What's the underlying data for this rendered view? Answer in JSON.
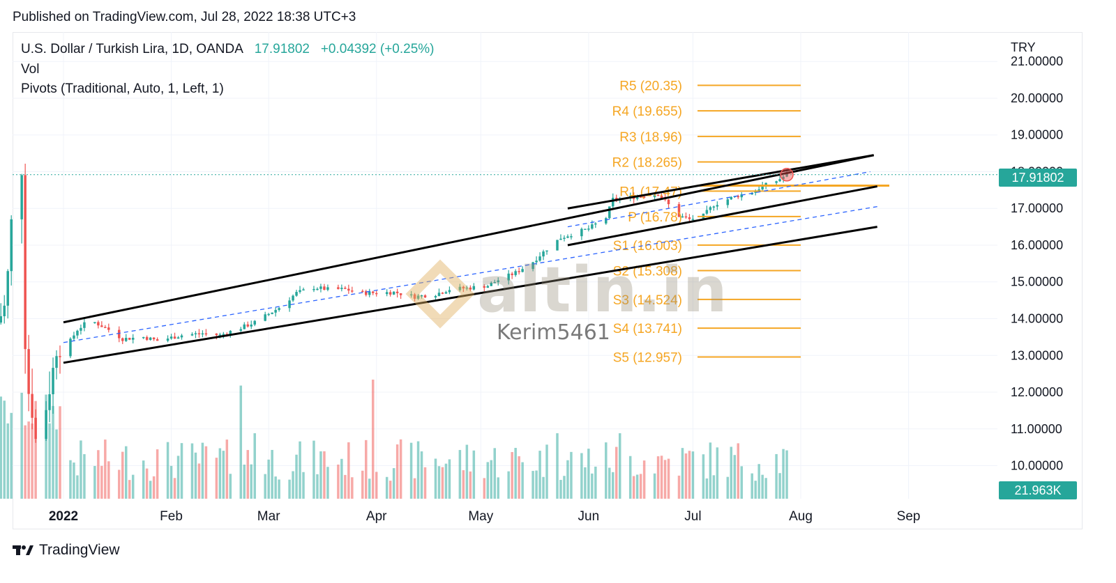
{
  "header": {
    "published": "Published on TradingView.com, Jul 28, 2022 18:38 UTC+3"
  },
  "legend": {
    "symbol": "U.S. Dollar / Turkish Lira, 1D, OANDA",
    "last": "17.91802",
    "change": "+0.04392 (+0.25%)",
    "vol_label": "Vol",
    "pivots_label": "Pivots (Traditional, Auto, 1, Left, 1)"
  },
  "axis": {
    "currency": "TRY",
    "current_price_tag": "17.91802",
    "volume_tag": "21.963K"
  },
  "watermark": {
    "brand": "altin.in",
    "author": "Kerim5461"
  },
  "footer": {
    "brand": "TradingView"
  },
  "colors": {
    "up": "#26a69a",
    "down": "#ef5350",
    "pivot": "#f5a623",
    "channel": "#000000",
    "midline": "#2962ff"
  },
  "chart_data": {
    "type": "candlestick",
    "y_ticks": [
      "21.00000",
      "20.00000",
      "19.00000",
      "18.00000",
      "17.00000",
      "16.00000",
      "15.00000",
      "14.00000",
      "13.00000",
      "12.00000",
      "11.00000",
      "10.00000"
    ],
    "x_ticks": [
      "2022",
      "Feb",
      "Mar",
      "Apr",
      "May",
      "Jun",
      "Jul",
      "Aug",
      "Sep"
    ],
    "ylim": [
      9.1,
      21.8
    ],
    "pivots": [
      {
        "label": "R5 (20.35)",
        "value": 20.35
      },
      {
        "label": "R4 (19.655)",
        "value": 19.655
      },
      {
        "label": "R3 (18.96)",
        "value": 18.96
      },
      {
        "label": "R2 (18.265)",
        "value": 18.265
      },
      {
        "label": "R1 (17.47)",
        "value": 17.47
      },
      {
        "label": "P (16.78)",
        "value": 16.78
      },
      {
        "label": "S1 (16.003)",
        "value": 16.003
      },
      {
        "label": "S2 (15.308)",
        "value": 15.308
      },
      {
        "label": "S3 (14.524)",
        "value": 14.524
      },
      {
        "label": "S4 (13.741)",
        "value": 13.741
      },
      {
        "label": "S5 (12.957)",
        "value": 12.957
      }
    ],
    "close_path": [
      [
        "2021-12-13",
        13.9
      ],
      [
        "2021-12-15",
        14.3
      ],
      [
        "2021-12-16",
        15.2
      ],
      [
        "2021-12-17",
        16.6
      ],
      [
        "2021-12-20",
        18.1
      ],
      [
        "2021-12-21",
        13.4
      ],
      [
        "2021-12-22",
        12.0
      ],
      [
        "2021-12-23",
        11.5
      ],
      [
        "2021-12-24",
        10.7
      ],
      [
        "2021-12-27",
        11.6
      ],
      [
        "2021-12-28",
        12.1
      ],
      [
        "2021-12-29",
        12.6
      ],
      [
        "2021-12-30",
        13.2
      ],
      [
        "2022-01-01",
        13.3
      ],
      [
        "2022-01-03",
        13.4
      ],
      [
        "2022-01-05",
        13.7
      ],
      [
        "2022-01-07",
        13.85
      ],
      [
        "2022-01-10",
        13.9
      ],
      [
        "2022-01-14",
        13.7
      ],
      [
        "2022-01-18",
        13.45
      ],
      [
        "2022-01-24",
        13.5
      ],
      [
        "2022-01-28",
        13.4
      ],
      [
        "2022-02-04",
        13.55
      ],
      [
        "2022-02-10",
        13.6
      ],
      [
        "2022-02-15",
        13.55
      ],
      [
        "2022-02-21",
        13.75
      ],
      [
        "2022-02-25",
        13.9
      ],
      [
        "2022-03-04",
        14.3
      ],
      [
        "2022-03-09",
        14.7
      ],
      [
        "2022-03-14",
        14.85
      ],
      [
        "2022-03-18",
        14.8
      ],
      [
        "2022-03-23",
        14.8
      ],
      [
        "2022-03-28",
        14.7
      ],
      [
        "2022-04-01",
        14.7
      ],
      [
        "2022-04-06",
        14.72
      ],
      [
        "2022-04-12",
        14.6
      ],
      [
        "2022-04-18",
        14.67
      ],
      [
        "2022-04-22",
        14.8
      ],
      [
        "2022-04-28",
        14.84
      ],
      [
        "2022-05-03",
        14.9
      ],
      [
        "2022-05-06",
        15.05
      ],
      [
        "2022-05-11",
        15.25
      ],
      [
        "2022-05-16",
        15.55
      ],
      [
        "2022-05-20",
        15.9
      ],
      [
        "2022-05-24",
        16.2
      ],
      [
        "2022-05-27",
        16.3
      ],
      [
        "2022-06-01",
        16.45
      ],
      [
        "2022-06-06",
        16.75
      ],
      [
        "2022-06-08",
        17.25
      ],
      [
        "2022-06-13",
        17.3
      ],
      [
        "2022-06-17",
        17.35
      ],
      [
        "2022-06-21",
        17.4
      ],
      [
        "2022-06-24",
        17.1
      ],
      [
        "2022-06-27",
        16.8
      ],
      [
        "2022-06-30",
        16.7
      ],
      [
        "2022-07-04",
        16.8
      ],
      [
        "2022-07-07",
        17.1
      ],
      [
        "2022-07-11",
        17.25
      ],
      [
        "2022-07-14",
        17.35
      ],
      [
        "2022-07-18",
        17.45
      ],
      [
        "2022-07-21",
        17.6
      ],
      [
        "2022-07-25",
        17.75
      ],
      [
        "2022-07-28",
        17.918
      ]
    ],
    "channels": [
      {
        "name": "upper",
        "from": [
          "2022-01-01",
          13.9
        ],
        "to": [
          "2022-08-22",
          18.45
        ]
      },
      {
        "name": "lower",
        "from": [
          "2022-01-01",
          12.8
        ],
        "to": [
          "2022-08-23",
          16.5
        ]
      },
      {
        "name": "short-upper",
        "from": [
          "2022-05-26",
          17.0
        ],
        "to": [
          "2022-08-22",
          18.45
        ]
      },
      {
        "name": "short-lower",
        "from": [
          "2022-05-26",
          16.0
        ],
        "to": [
          "2022-08-23",
          17.6
        ]
      }
    ],
    "midlines": [
      {
        "from": [
          "2022-01-01",
          13.35
        ],
        "to": [
          "2022-08-23",
          17.05
        ]
      },
      {
        "from": [
          "2022-05-26",
          16.5
        ],
        "to": [
          "2022-08-21",
          18.0
        ]
      }
    ],
    "volume": {
      "max_label": "21.963K"
    }
  }
}
